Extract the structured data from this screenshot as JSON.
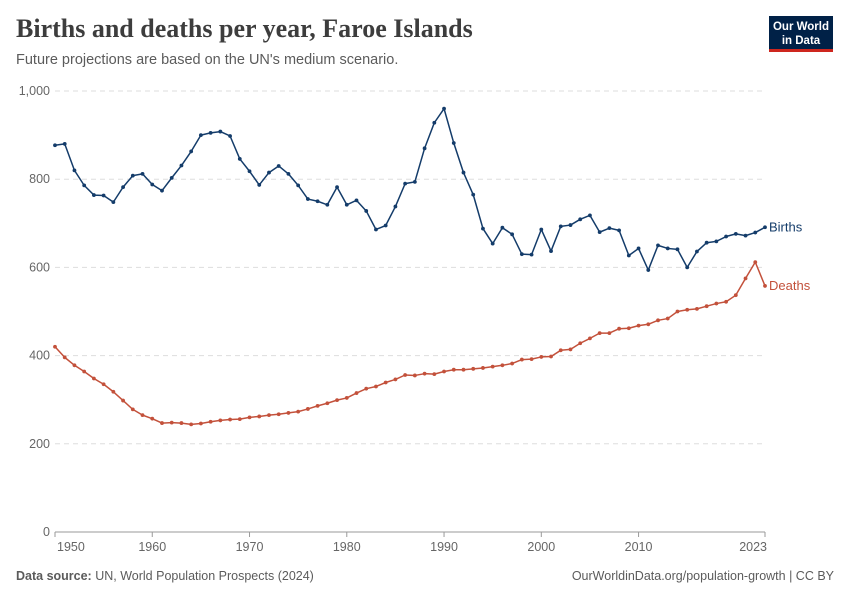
{
  "header": {
    "title": "Births and deaths per year, Faroe Islands",
    "subtitle": "Future projections are based on the UN's medium scenario.",
    "logo_line1": "Our World",
    "logo_line2": "in Data"
  },
  "footer": {
    "source_label": "Data source:",
    "source_text": "UN, World Population Prospects (2024)",
    "link_text": "OurWorldinData.org/population-growth | CC BY"
  },
  "colors": {
    "births": "#143c6a",
    "deaths": "#c3513b",
    "grid": "#dddddd",
    "axis": "#9a9a9a"
  },
  "chart_data": {
    "type": "line",
    "title": "Births and deaths per year, Faroe Islands",
    "xlabel": "",
    "ylabel": "",
    "xlim": [
      1950,
      2023
    ],
    "ylim": [
      0,
      1000
    ],
    "x_ticks": [
      1950,
      1960,
      1970,
      1980,
      1990,
      2000,
      2010,
      2023
    ],
    "x_tick_labels": [
      "1950",
      "1960",
      "1970",
      "1980",
      "1990",
      "2000",
      "2010",
      "2023"
    ],
    "y_ticks": [
      0,
      200,
      400,
      600,
      800,
      1000
    ],
    "y_tick_labels": [
      "0",
      "200",
      "400",
      "600",
      "800",
      "1,000"
    ],
    "grid": "horizontal dashed",
    "legend": "inline labels at line ends",
    "x": [
      1950,
      1951,
      1952,
      1953,
      1954,
      1955,
      1956,
      1957,
      1958,
      1959,
      1960,
      1961,
      1962,
      1963,
      1964,
      1965,
      1966,
      1967,
      1968,
      1969,
      1970,
      1971,
      1972,
      1973,
      1974,
      1975,
      1976,
      1977,
      1978,
      1979,
      1980,
      1981,
      1982,
      1983,
      1984,
      1985,
      1986,
      1987,
      1988,
      1989,
      1990,
      1991,
      1992,
      1993,
      1994,
      1995,
      1996,
      1997,
      1998,
      1999,
      2000,
      2001,
      2002,
      2003,
      2004,
      2005,
      2006,
      2007,
      2008,
      2009,
      2010,
      2011,
      2012,
      2013,
      2014,
      2015,
      2016,
      2017,
      2018,
      2019,
      2020,
      2021,
      2022,
      2023
    ],
    "series": [
      {
        "name": "Births",
        "values": [
          877,
          880,
          820,
          786,
          764,
          763,
          748,
          782,
          808,
          812,
          788,
          774,
          803,
          831,
          863,
          900,
          905,
          908,
          898,
          846,
          818,
          787,
          815,
          830,
          812,
          786,
          755,
          750,
          742,
          782,
          742,
          752,
          728,
          686,
          695,
          738,
          790,
          794,
          870,
          928,
          960,
          882,
          815,
          765,
          688,
          654,
          690,
          675,
          630,
          629,
          686,
          637,
          693,
          696,
          709,
          718,
          680,
          689,
          684,
          627,
          643,
          594,
          650,
          643,
          641,
          600,
          636,
          656,
          659,
          670,
          676,
          672,
          679,
          691
        ]
      },
      {
        "name": "Deaths",
        "values": [
          420,
          396,
          378,
          364,
          348,
          335,
          318,
          298,
          278,
          265,
          257,
          247,
          248,
          247,
          244,
          246,
          250,
          253,
          255,
          256,
          260,
          262,
          265,
          267,
          270,
          273,
          279,
          286,
          292,
          299,
          304,
          315,
          325,
          330,
          339,
          346,
          356,
          355,
          359,
          358,
          364,
          368,
          368,
          370,
          372,
          375,
          378,
          382,
          391,
          392,
          397,
          398,
          412,
          414,
          428,
          439,
          451,
          451,
          461,
          462,
          468,
          471,
          480,
          484,
          500,
          504,
          506,
          512,
          518,
          522,
          537,
          575,
          612,
          558
        ]
      }
    ]
  }
}
